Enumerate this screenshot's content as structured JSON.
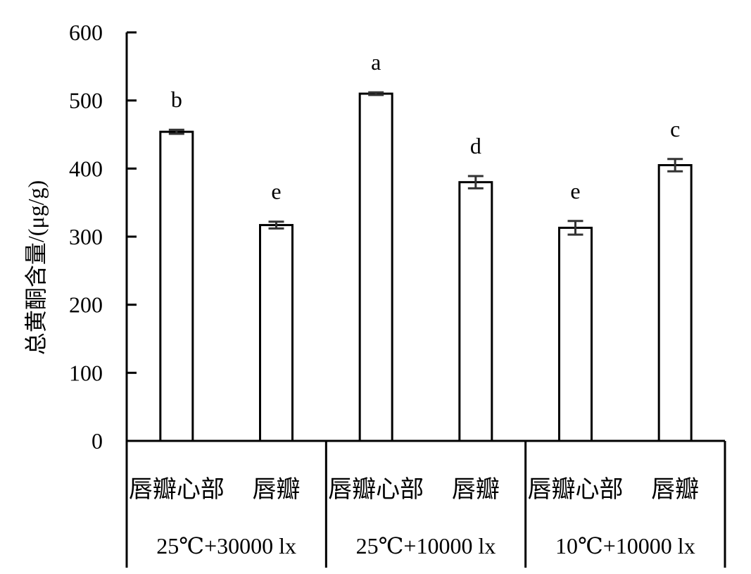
{
  "chart_data": {
    "type": "bar",
    "title": "",
    "ylabel": "总黄酮含量/(μg/g)",
    "ylim": [
      0,
      600
    ],
    "yticks": [
      0,
      100,
      200,
      300,
      400,
      500,
      600
    ],
    "groups": [
      {
        "label": "25℃+30000 lx",
        "categories": [
          "唇瓣心部",
          "唇瓣"
        ]
      },
      {
        "label": "25℃+10000 lx",
        "categories": [
          "唇瓣心部",
          "唇瓣"
        ]
      },
      {
        "label": "10℃+10000 lx",
        "categories": [
          "唇瓣心部",
          "唇瓣"
        ]
      }
    ],
    "bars": [
      {
        "group": 0,
        "category": "唇瓣心部",
        "value": 454,
        "error": 3,
        "letter": "b"
      },
      {
        "group": 0,
        "category": "唇瓣",
        "value": 317,
        "error": 5,
        "letter": "e"
      },
      {
        "group": 1,
        "category": "唇瓣心部",
        "value": 510,
        "error": 2,
        "letter": "a"
      },
      {
        "group": 1,
        "category": "唇瓣",
        "value": 380,
        "error": 9,
        "letter": "d"
      },
      {
        "group": 2,
        "category": "唇瓣心部",
        "value": 313,
        "error": 10,
        "letter": "e"
      },
      {
        "group": 2,
        "category": "唇瓣",
        "value": 405,
        "error": 9,
        "letter": "c"
      }
    ],
    "colors": {
      "bar_fill": "#ffffff",
      "bar_stroke": "#000000",
      "error_bar": "#333333"
    }
  }
}
